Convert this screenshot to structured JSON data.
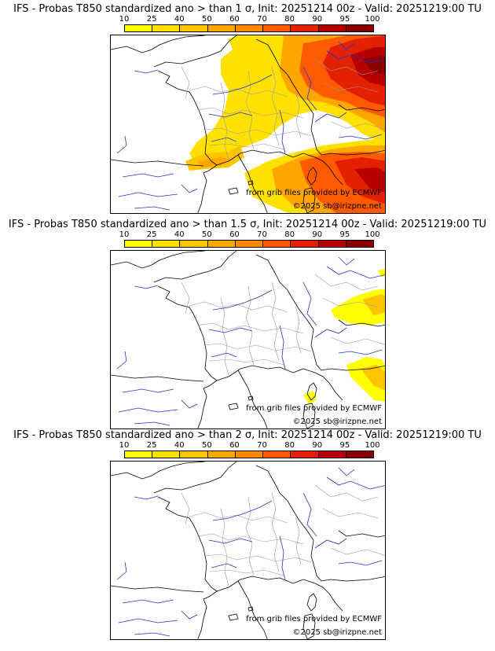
{
  "colorbar": {
    "ticks": [
      "10",
      "25",
      "40",
      "50",
      "60",
      "70",
      "80",
      "90",
      "95",
      "100"
    ],
    "colors": [
      "#ffff00",
      "#ffe100",
      "#ffc400",
      "#ffa600",
      "#ff8800",
      "#ff5a00",
      "#e32000",
      "#b80000",
      "#8a0000"
    ]
  },
  "panels": [
    {
      "title": "IFS - Probas T850  standardized ano > than 1 σ, Init: 20251214 00z - Valid: 20251219:00 TU",
      "credit_line1": "from grib files provided by ECMWF",
      "credit_line2": "©2025 sb@irizpne.net"
    },
    {
      "title": "IFS - Probas T850  standardized ano > than 1.5 σ, Init: 20251214 00z - Valid: 20251219:00 TU",
      "credit_line1": "from grib files provided by ECMWF",
      "credit_line2": "©2025 sb@irizpne.net"
    },
    {
      "title": "IFS - Probas T850  standardized ano > than 2 σ, Init: 20251214 00z - Valid: 20251219:00 TU",
      "credit_line1": "from grib files provided by ECMWF",
      "credit_line2": "©2025 sb@irizpne.net"
    }
  ]
}
